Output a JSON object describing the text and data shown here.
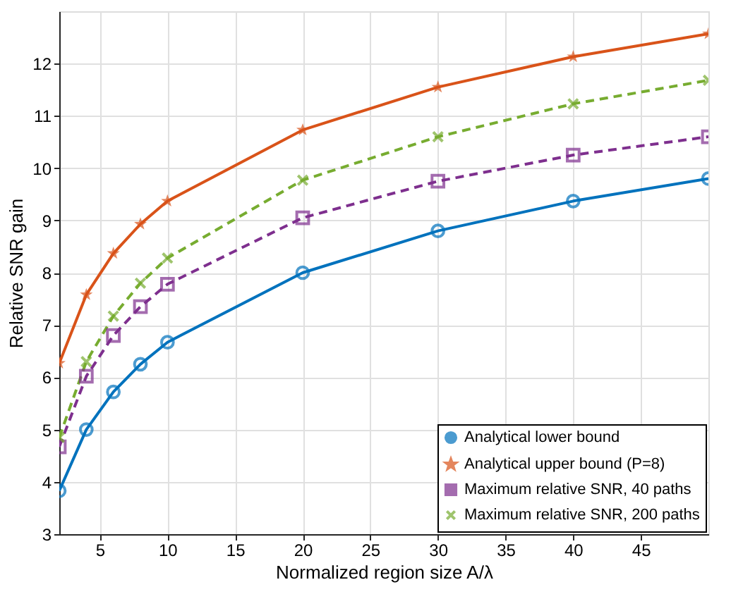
{
  "chart_data": {
    "type": "line",
    "xlabel": "Normalized region size A/λ",
    "ylabel": "Relative SNR gain",
    "x": [
      2,
      4,
      6,
      8,
      10,
      20,
      30,
      40,
      50
    ],
    "xlim": [
      2,
      50
    ],
    "xticks": [
      5,
      10,
      15,
      20,
      25,
      30,
      35,
      40,
      45
    ],
    "ylim": [
      3,
      13
    ],
    "yticks": [
      3,
      4,
      5,
      6,
      7,
      8,
      9,
      10,
      11,
      12
    ],
    "grid": true,
    "legend": "bottom right",
    "series": [
      {
        "name": "Analytical lower bound",
        "color": "#0072bd",
        "marker": "circle",
        "line_style": "solid",
        "values": [
          3.83,
          5.0,
          5.72,
          6.25,
          6.67,
          8.0,
          8.8,
          9.37,
          9.8
        ]
      },
      {
        "name": "Analytical upper bound (P=8)",
        "color": "#d95319",
        "marker": "star",
        "line_style": "solid",
        "values": [
          6.27,
          7.58,
          8.37,
          8.93,
          9.37,
          10.73,
          11.55,
          12.13,
          12.57
        ]
      },
      {
        "name": "Maximum relative SNR, 40 paths",
        "color": "#7e2f8e",
        "marker": "square",
        "line_style": "dashed",
        "values": [
          4.67,
          6.02,
          6.8,
          7.35,
          7.78,
          9.05,
          9.75,
          10.25,
          10.6
        ]
      },
      {
        "name": "Maximum relative SNR, 200 paths",
        "color": "#77ac30",
        "marker": "cross",
        "line_style": "dashed",
        "values": [
          4.85,
          6.3,
          7.17,
          7.8,
          8.28,
          9.77,
          10.6,
          11.23,
          11.68
        ]
      }
    ]
  }
}
